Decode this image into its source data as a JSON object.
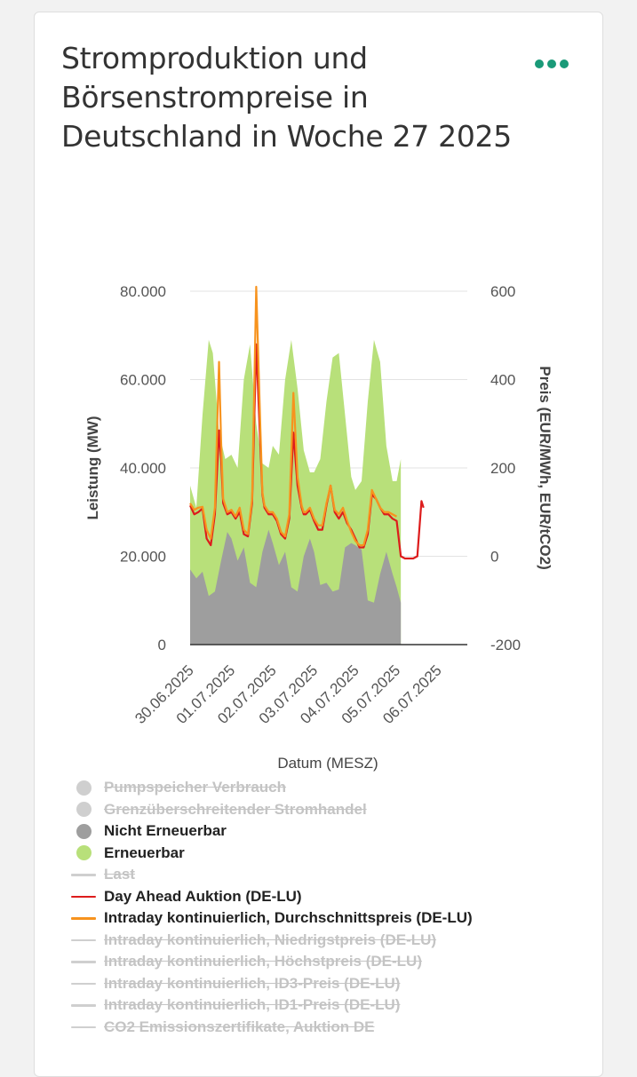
{
  "card": {
    "title": "Stromproduktion und Börsenstrompreise in Deutschland in Woche 27 2025",
    "menu_icon": "more-dots-icon",
    "menu_color": "#1a9a78"
  },
  "chart_data": {
    "type": "area",
    "xlabel": "Datum (MESZ)",
    "ylabel_left": "Leistung (MW)",
    "ylabel_right": "Preis (EUR/MWh, EUR/tCO2)",
    "ylim_left": [
      0,
      80000
    ],
    "ylim_right": [
      -200,
      600
    ],
    "left_ticks": [
      "80.000",
      "60.000",
      "40.000",
      "20.000",
      "0"
    ],
    "right_ticks": [
      "600",
      "400",
      "200",
      "0",
      "-200"
    ],
    "x_ticks": [
      "30.06.2025",
      "01.07.2025",
      "02.07.2025",
      "03.07.2025",
      "04.07.2025",
      "05.07.2025",
      "06.07.2025"
    ],
    "x_unit": "days since 30.06.2025 00:00",
    "series": [
      {
        "name": "Nicht Erneuerbar",
        "kind": "area",
        "axis": "left",
        "color": "#9e9e9e",
        "x": [
          0,
          0.15,
          0.3,
          0.45,
          0.6,
          0.75,
          0.9,
          1.0,
          1.15,
          1.3,
          1.45,
          1.6,
          1.75,
          1.9,
          2.0,
          2.15,
          2.3,
          2.45,
          2.6,
          2.75,
          2.9,
          3.0,
          3.15,
          3.3,
          3.45,
          3.6,
          3.75,
          3.9,
          4.0,
          4.15,
          4.3,
          4.45,
          4.6,
          4.75,
          4.9,
          5.0,
          5.1
        ],
        "values": [
          17000,
          15000,
          16500,
          11000,
          12000,
          19000,
          25500,
          24000,
          19000,
          22000,
          14000,
          13000,
          21000,
          26000,
          23000,
          18000,
          21000,
          13000,
          12000,
          20000,
          24000,
          21000,
          13500,
          14000,
          12000,
          12500,
          22000,
          23000,
          22500,
          21500,
          10000,
          9500,
          16000,
          21000,
          16000,
          13000,
          9500
        ]
      },
      {
        "name": "Erneuerbar",
        "kind": "area",
        "axis": "left",
        "color": "#b8e07a",
        "x": [
          0,
          0.15,
          0.3,
          0.45,
          0.55,
          0.7,
          0.85,
          1.0,
          1.15,
          1.3,
          1.45,
          1.6,
          1.75,
          1.9,
          2.0,
          2.15,
          2.3,
          2.45,
          2.6,
          2.75,
          2.9,
          3.0,
          3.15,
          3.3,
          3.45,
          3.6,
          3.75,
          3.9,
          4.0,
          4.15,
          4.3,
          4.45,
          4.6,
          4.75,
          4.9,
          5.0,
          5.1
        ],
        "values": [
          36000,
          31000,
          52000,
          69000,
          66000,
          48000,
          42000,
          43000,
          40000,
          60000,
          68000,
          50000,
          41000,
          40000,
          45000,
          43000,
          60000,
          69000,
          58000,
          44000,
          39000,
          39000,
          42000,
          55000,
          65000,
          66000,
          52000,
          38000,
          35000,
          37000,
          55000,
          69000,
          64000,
          45000,
          37000,
          37000,
          42000
        ]
      },
      {
        "name": "Day Ahead Auktion (DE-LU)",
        "kind": "line",
        "axis": "right",
        "color": "#dd1c1c",
        "x": [
          0,
          0.1,
          0.2,
          0.3,
          0.4,
          0.5,
          0.6,
          0.7,
          0.75,
          0.8,
          0.9,
          1.0,
          1.1,
          1.2,
          1.3,
          1.4,
          1.5,
          1.6,
          1.7,
          1.75,
          1.8,
          1.9,
          2.0,
          2.1,
          2.2,
          2.3,
          2.4,
          2.5,
          2.6,
          2.7,
          2.75,
          2.8,
          2.9,
          3.0,
          3.1,
          3.2,
          3.3,
          3.4,
          3.5,
          3.6,
          3.7,
          3.8,
          3.9,
          4.0,
          4.1,
          4.2,
          4.3,
          4.4,
          4.5,
          4.6,
          4.7,
          4.8,
          4.9,
          5.0,
          5.1,
          5.2,
          5.3,
          5.4,
          5.5,
          5.6,
          5.65
        ],
        "values": [
          115,
          95,
          100,
          108,
          40,
          25,
          95,
          285,
          220,
          120,
          95,
          100,
          85,
          100,
          50,
          45,
          120,
          480,
          250,
          140,
          110,
          95,
          95,
          80,
          50,
          40,
          85,
          280,
          160,
          110,
          95,
          95,
          105,
          80,
          60,
          60,
          115,
          160,
          100,
          85,
          100,
          75,
          60,
          40,
          20,
          20,
          50,
          140,
          130,
          110,
          95,
          95,
          85,
          80,
          0,
          -5,
          -5,
          -5,
          0,
          125,
          110
        ]
      },
      {
        "name": "Intraday kontinuierlich, Durchschnittspreis (DE-LU)",
        "kind": "line",
        "axis": "right",
        "color": "#f7931e",
        "x": [
          0,
          0.1,
          0.2,
          0.3,
          0.4,
          0.5,
          0.6,
          0.7,
          0.75,
          0.8,
          0.9,
          1.0,
          1.1,
          1.2,
          1.3,
          1.4,
          1.5,
          1.6,
          1.7,
          1.75,
          1.8,
          1.9,
          2.0,
          2.1,
          2.2,
          2.3,
          2.4,
          2.5,
          2.6,
          2.7,
          2.75,
          2.8,
          2.9,
          3.0,
          3.1,
          3.2,
          3.3,
          3.4,
          3.5,
          3.6,
          3.7,
          3.8,
          3.9,
          4.0,
          4.1,
          4.2,
          4.3,
          4.4,
          4.5,
          4.6,
          4.7,
          4.8,
          4.9,
          5.0
        ],
        "values": [
          120,
          105,
          110,
          112,
          60,
          40,
          110,
          440,
          260,
          130,
          100,
          105,
          90,
          110,
          60,
          50,
          130,
          610,
          290,
          145,
          115,
          100,
          100,
          85,
          55,
          45,
          95,
          370,
          180,
          115,
          100,
          100,
          110,
          85,
          70,
          70,
          120,
          160,
          105,
          95,
          110,
          80,
          55,
          35,
          25,
          25,
          60,
          150,
          130,
          110,
          100,
          100,
          95,
          90
        ]
      }
    ]
  },
  "legend": [
    {
      "label": "Pumpspeicher Verbrauch",
      "symbol": "dot",
      "color": "#cfcfcf",
      "active": false
    },
    {
      "label": "Grenzüberschreitender Stromhandel",
      "symbol": "dot",
      "color": "#cfcfcf",
      "active": false
    },
    {
      "label": "Nicht Erneuerbar",
      "symbol": "dot",
      "color": "#9e9e9e",
      "active": true
    },
    {
      "label": "Erneuerbar",
      "symbol": "dot",
      "color": "#b8e07a",
      "active": true
    },
    {
      "label": "Last",
      "symbol": "line",
      "color": "#cfcfcf",
      "active": false
    },
    {
      "label": "Day Ahead Auktion (DE-LU)",
      "symbol": "line",
      "color": "#dd1c1c",
      "active": true
    },
    {
      "label": "Intraday kontinuierlich, Durchschnittspreis (DE-LU)",
      "symbol": "line",
      "color": "#f7931e",
      "active": true
    },
    {
      "label": "Intraday kontinuierlich, Niedrigstpreis (DE-LU)",
      "symbol": "line",
      "color": "#cfcfcf",
      "active": false
    },
    {
      "label": "Intraday kontinuierlich, Höchstpreis (DE-LU)",
      "symbol": "line",
      "color": "#cfcfcf",
      "active": false
    },
    {
      "label": "Intraday kontinuierlich, ID3-Preis (DE-LU)",
      "symbol": "line",
      "color": "#cfcfcf",
      "active": false
    },
    {
      "label": "Intraday kontinuierlich, ID1-Preis (DE-LU)",
      "symbol": "line",
      "color": "#cfcfcf",
      "active": false
    },
    {
      "label": "CO2 Emissionszertifikate, Auktion DE",
      "symbol": "line",
      "color": "#cfcfcf",
      "active": false
    }
  ]
}
